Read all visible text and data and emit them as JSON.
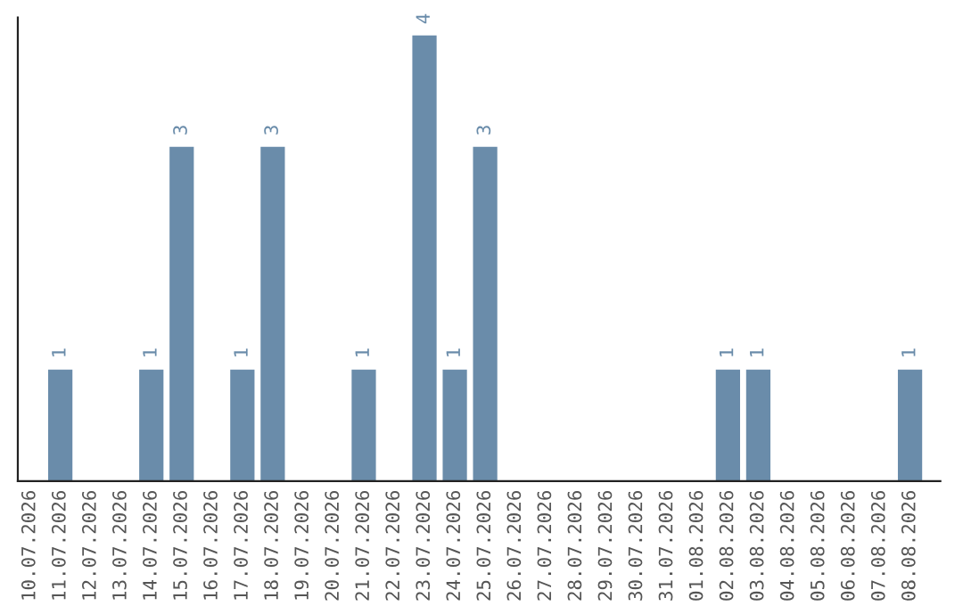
{
  "chart_data": {
    "type": "bar",
    "categories": [
      "10.07.2026",
      "11.07.2026",
      "12.07.2026",
      "13.07.2026",
      "14.07.2026",
      "15.07.2026",
      "16.07.2026",
      "17.07.2026",
      "18.07.2026",
      "19.07.2026",
      "20.07.2026",
      "21.07.2026",
      "22.07.2026",
      "23.07.2026",
      "24.07.2026",
      "25.07.2026",
      "26.07.2026",
      "27.07.2026",
      "28.07.2026",
      "29.07.2026",
      "30.07.2026",
      "31.07.2026",
      "01.08.2026",
      "02.08.2026",
      "03.08.2026",
      "04.08.2026",
      "05.08.2026",
      "06.08.2026",
      "07.08.2026",
      "08.08.2026"
    ],
    "values": [
      null,
      1,
      null,
      null,
      1,
      3,
      null,
      1,
      3,
      null,
      null,
      1,
      null,
      4,
      1,
      3,
      null,
      null,
      null,
      null,
      null,
      null,
      null,
      1,
      1,
      null,
      null,
      null,
      null,
      1
    ],
    "color": "#6a8caa",
    "data_labels": true,
    "tick_labels": "x",
    "grid": false,
    "legend": false
  }
}
